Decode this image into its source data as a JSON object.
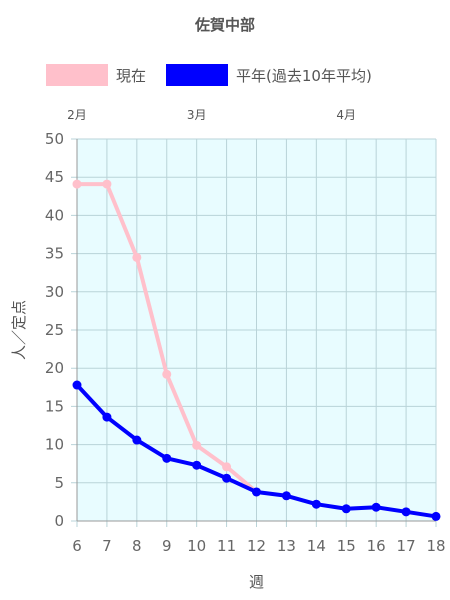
{
  "chart_data": {
    "type": "line",
    "title": "佐賀中部",
    "xlabel": "週",
    "ylabel": "人／定点",
    "x": [
      6,
      7,
      8,
      9,
      10,
      11,
      12,
      13,
      14,
      15,
      16,
      17,
      18
    ],
    "xlim": [
      6,
      18
    ],
    "ylim": [
      0,
      50
    ],
    "yticks": [
      0,
      5,
      10,
      15,
      20,
      25,
      30,
      35,
      40,
      45,
      50
    ],
    "grid": true,
    "legend_position": "top",
    "plot_background": "#e8fcff",
    "month_labels": [
      {
        "label": "2月",
        "x": 6
      },
      {
        "label": "3月",
        "x": 10
      },
      {
        "label": "4月",
        "x": 15
      }
    ],
    "series": [
      {
        "name": "現在",
        "color": "#ffc0cb",
        "x": [
          6,
          7,
          8,
          9,
          10,
          11,
          12
        ],
        "values": [
          44.1,
          44.1,
          34.5,
          19.2,
          9.9,
          7.1,
          3.8
        ]
      },
      {
        "name": "平年(過去10年平均)",
        "color": "#0000ff",
        "x": [
          6,
          7,
          8,
          9,
          10,
          11,
          12,
          13,
          14,
          15,
          16,
          17,
          18
        ],
        "values": [
          17.8,
          13.6,
          10.6,
          8.2,
          7.3,
          5.6,
          3.8,
          3.3,
          2.2,
          1.6,
          1.8,
          1.2,
          0.6
        ]
      }
    ]
  }
}
